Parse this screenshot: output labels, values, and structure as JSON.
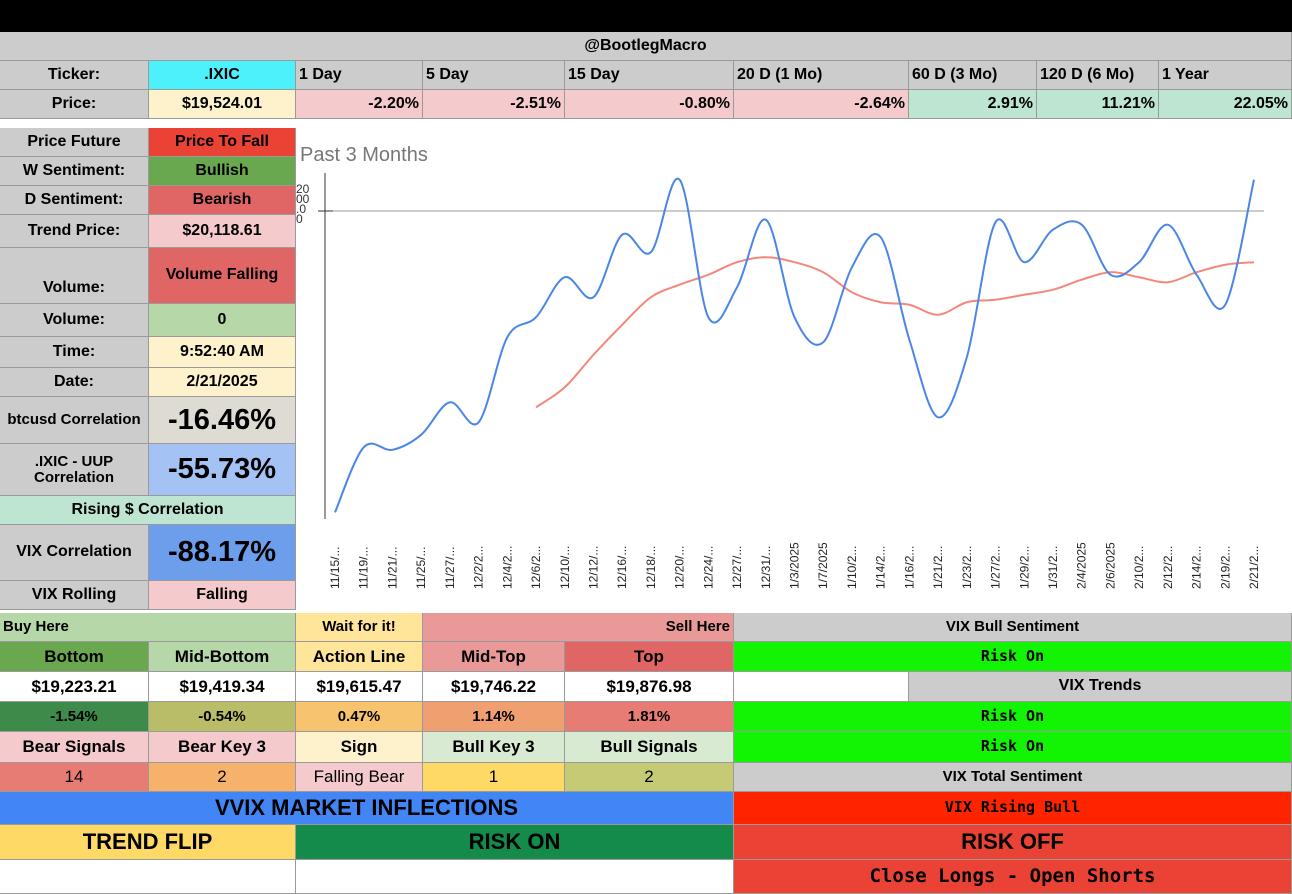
{
  "header": {
    "title": "@BootlegMacro"
  },
  "ticker_row": {
    "label": "Ticker:",
    "value": ".IXIC",
    "periods": [
      "1 Day",
      "5 Day",
      "15 Day",
      "20 D (1 Mo)",
      "60 D (3 Mo)",
      "120 D (6 Mo)",
      "1 Year"
    ]
  },
  "price_row": {
    "label": "Price:",
    "value": "$19,524.01",
    "changes": [
      "-2.20%",
      "-2.51%",
      "-0.80%",
      "-2.64%",
      "2.91%",
      "11.21%",
      "22.05%"
    ]
  },
  "left_panel": {
    "price_future": {
      "label": "Price Future",
      "value": "Price To Fall"
    },
    "w_sentiment": {
      "label": "W Sentiment:",
      "value": "Bullish"
    },
    "d_sentiment": {
      "label": "D Sentiment:",
      "value": "Bearish"
    },
    "trend_price": {
      "label": "Trend Price:",
      "value": "$20,118.61"
    },
    "volume_trend": {
      "label": "Volume:",
      "value": "Volume Falling"
    },
    "volume": {
      "label": "Volume:",
      "value": "0"
    },
    "time": {
      "label": "Time:",
      "value": "9:52:40 AM"
    },
    "date": {
      "label": "Date:",
      "value": "2/21/2025"
    },
    "btc_corr": {
      "label": "btcusd Correlation",
      "value": "-16.46%"
    },
    "uup_corr": {
      "label": ".IXIC - UUP Correlation",
      "value": "-55.73%"
    },
    "rising_corr": "Rising $ Correlation",
    "vix_corr": {
      "label": "VIX Correlation",
      "value": "-88.17%"
    },
    "vix_rolling": {
      "label": "VIX Rolling",
      "value": "Falling"
    }
  },
  "levels": {
    "buy_here": "Buy Here",
    "wait": "Wait for it!",
    "sell_here": "Sell Here",
    "headers": [
      "Bottom",
      "Mid-Bottom",
      "Action Line",
      "Mid-Top",
      "Top"
    ],
    "prices": [
      "$19,223.21",
      "$19,419.34",
      "$19,615.47",
      "$19,746.22",
      "$19,876.98"
    ],
    "pcts": [
      "-1.54%",
      "-0.54%",
      "0.47%",
      "1.14%",
      "1.81%"
    ],
    "signal_headers": [
      "Bear Signals",
      "Bear Key 3",
      "Sign",
      "Bull Key 3",
      "Bull Signals"
    ],
    "signal_values": [
      "14",
      "2",
      "Falling Bear",
      "1",
      "2"
    ]
  },
  "vix_panel": {
    "bull_sentiment_title": "VIX Bull Sentiment",
    "bull_sentiment_value": "Risk On",
    "trends_title": "VIX Trends",
    "trends_values": [
      "Risk On",
      "Risk On"
    ],
    "total_title": "VIX Total Sentiment",
    "total_value": "VIX Rising Bull",
    "risk_off": "RISK OFF",
    "action": "Close Longs - Open Shorts"
  },
  "bottom": {
    "vvix": "VVIX MARKET INFLECTIONS",
    "trend_flip": "TREND FLIP",
    "risk_on": "RISK ON"
  },
  "colors": {
    "cyan": "#4df1fb",
    "light_yellow": "#fef2cc",
    "pink": "#f5cacc",
    "mint": "#bde5d2",
    "red": "#ea4336",
    "green": "#6aa84f",
    "bearish_red": "#e06666",
    "light_green": "#b6d7a8",
    "blue": "#6d9eeb",
    "light_blue": "#a4c2f4",
    "grey": "#cccccc",
    "bright_green": "#13f404",
    "vix_red": "#ff2400",
    "vvix_blue": "#4285f4",
    "trend_yellow": "#ffd966",
    "risk_on_green": "#148b4b"
  },
  "chart_data": {
    "type": "line",
    "title": "Past 3 Months",
    "y_tick_labels_clipped": [
      "20",
      "00",
      ".0",
      "0"
    ],
    "x": [
      "11/15/...",
      "11/19/...",
      "11/21/...",
      "11/25/...",
      "11/27/...",
      "12/2/2...",
      "12/4/2...",
      "12/6/2...",
      "12/10/...",
      "12/12/...",
      "12/16/...",
      "12/18/...",
      "12/20/...",
      "12/24/...",
      "12/27/...",
      "12/31/...",
      "1/3/2025",
      "1/7/2025",
      "1/10/2...",
      "1/14/2...",
      "1/16/2...",
      "1/21/2...",
      "1/23/2...",
      "1/27/2...",
      "1/29/2...",
      "1/31/2...",
      "2/4/2025",
      "2/6/2025",
      "2/10/2...",
      "2/12/2...",
      "2/14/2...",
      "2/19/2...",
      "2/21/2..."
    ],
    "grid": false,
    "series": [
      {
        "color": "#4a86e8",
        "values": [
          18700,
          18960,
          18950,
          19010,
          19140,
          19060,
          19400,
          19480,
          19640,
          19560,
          19810,
          19740,
          20030,
          19480,
          19600,
          19870,
          19480,
          19380,
          19680,
          19800,
          19390,
          19080,
          19320,
          19860,
          19700,
          19830,
          19850,
          19650,
          19700,
          19850,
          19650,
          19530,
          20030
        ]
      },
      {
        "color": "#f4877b",
        "values": [
          null,
          null,
          null,
          null,
          null,
          null,
          null,
          19120,
          19200,
          19330,
          19450,
          19560,
          19610,
          19650,
          19700,
          19720,
          19700,
          19660,
          19580,
          19540,
          19530,
          19490,
          19540,
          19550,
          19570,
          19590,
          19630,
          19660,
          19640,
          19620,
          19660,
          19690,
          19700
        ]
      }
    ]
  }
}
